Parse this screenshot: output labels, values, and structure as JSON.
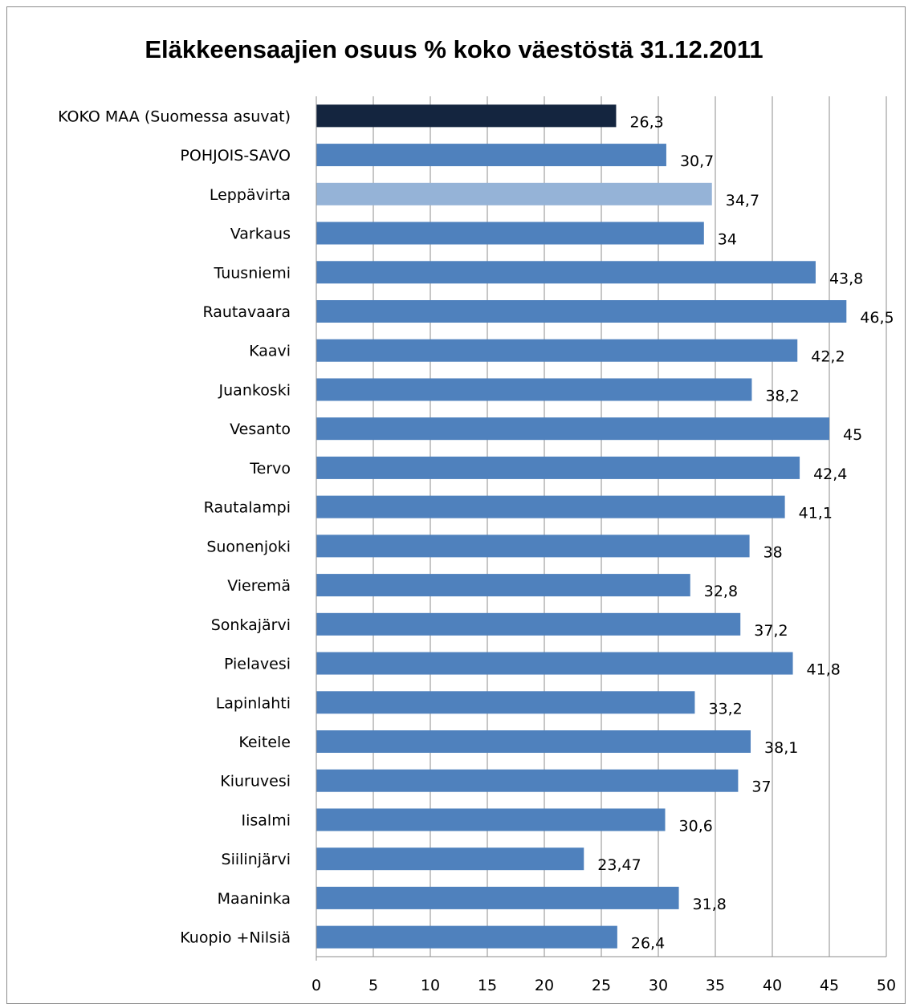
{
  "chart_data": {
    "type": "bar",
    "orientation": "horizontal",
    "title": "Eläkkeensaajien osuus %  koko väestöstä 31.12.2011",
    "xlabel": "",
    "ylabel": "",
    "xlim": [
      0,
      50
    ],
    "xticks": [
      "0",
      "5",
      "10",
      "15",
      "20",
      "25",
      "30",
      "35",
      "40",
      "45",
      "50"
    ],
    "grid": "vertical",
    "legend": "none",
    "categories": [
      "KOKO MAA (Suomessa asuvat)",
      "POHJOIS-SAVO",
      "Leppävirta",
      "Varkaus",
      "Tuusniemi",
      "Rautavaara",
      "Kaavi",
      "Juankoski",
      "Vesanto",
      "Tervo",
      "Rautalampi",
      "Suonenjoki",
      "Vieremä",
      "Sonkajärvi",
      "Pielavesi",
      "Lapinlahti",
      "Keitele",
      "Kiuruvesi",
      "Iisalmi",
      "Siilinjärvi",
      "Maaninka",
      "Kuopio +Nilsiä"
    ],
    "values": [
      26.3,
      30.7,
      34.7,
      34,
      43.8,
      46.5,
      42.2,
      38.2,
      45,
      42.4,
      41.1,
      38,
      32.8,
      37.2,
      41.8,
      33.2,
      38.1,
      37,
      30.6,
      23.47,
      31.8,
      26.4
    ],
    "value_labels": [
      "26,3",
      "30,7",
      "34,7",
      "34",
      "43,8",
      "46,5",
      "42,2",
      "38,2",
      "45",
      "42,4",
      "41,1",
      "38",
      "32,8",
      "37,2",
      "41,8",
      "33,2",
      "38,1",
      "37",
      "30,6",
      "23,47",
      "31,8",
      "26,4"
    ],
    "colors": {
      "default": "#4f81bd",
      "highlight_country": "#14253f",
      "highlight_municipality": "#95b3d7",
      "grid": "#8c8c8c"
    },
    "bar_colors": [
      "highlight_country",
      "default",
      "highlight_municipality",
      "default",
      "default",
      "default",
      "default",
      "default",
      "default",
      "default",
      "default",
      "default",
      "default",
      "default",
      "default",
      "default",
      "default",
      "default",
      "default",
      "default",
      "default",
      "default"
    ]
  }
}
